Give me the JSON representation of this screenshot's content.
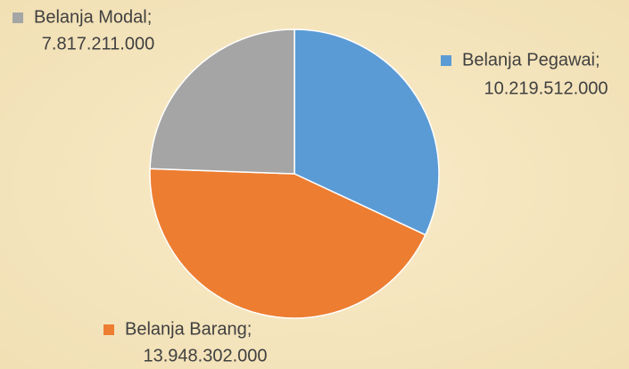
{
  "chart_data": {
    "type": "pie",
    "categories": [
      "Belanja Pegawai;",
      "Belanja Barang;",
      "Belanja Modal;"
    ],
    "values": [
      10219512000,
      13948302000,
      7817211000
    ],
    "value_labels": [
      "10.219.512.000",
      "13.948.302.000",
      "7.817.211.000"
    ],
    "colors": [
      "#5b9bd5",
      "#ed7d31",
      "#a5a5a5"
    ]
  }
}
